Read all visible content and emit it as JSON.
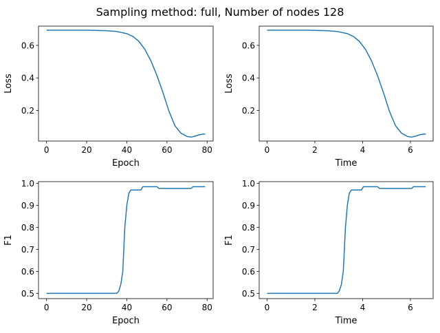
{
  "figure": {
    "title": "Sampling method: full, Number of nodes 128"
  },
  "chart_data": [
    {
      "type": "line",
      "xlabel": "Epoch",
      "ylabel": "Loss",
      "xlim": [
        -4,
        83
      ],
      "ylim": [
        0.012,
        0.718
      ],
      "xticks": [
        0,
        20,
        40,
        60,
        80
      ],
      "xtick_labels": [
        "0",
        "20",
        "40",
        "60",
        "80"
      ],
      "yticks": [
        0.2,
        0.4,
        0.6
      ],
      "ytick_labels": [
        "0.2",
        "0.4",
        "0.6"
      ],
      "color": "#1f77b4",
      "grid": false,
      "series": [
        {
          "x": [
            0,
            10,
            20,
            30,
            35,
            40,
            43,
            46,
            49,
            52,
            55,
            58,
            61,
            64,
            67,
            70,
            72,
            74,
            76,
            78,
            79
          ],
          "y": [
            0.693,
            0.693,
            0.693,
            0.69,
            0.685,
            0.672,
            0.655,
            0.625,
            0.575,
            0.505,
            0.415,
            0.31,
            0.195,
            0.105,
            0.06,
            0.04,
            0.036,
            0.042,
            0.05,
            0.055,
            0.055
          ]
        }
      ]
    },
    {
      "type": "line",
      "xlabel": "Time",
      "ylabel": "Loss",
      "xlim": [
        -0.33,
        6.95
      ],
      "ylim": [
        0.012,
        0.718
      ],
      "xticks": [
        0,
        2,
        4,
        6
      ],
      "xtick_labels": [
        "0",
        "2",
        "4",
        "6"
      ],
      "yticks": [
        0.2,
        0.4,
        0.6
      ],
      "ytick_labels": [
        "0.2",
        "0.4",
        "0.6"
      ],
      "color": "#1f77b4",
      "grid": false,
      "series": [
        {
          "x": [
            0,
            0.84,
            1.68,
            2.52,
            2.94,
            3.36,
            3.61,
            3.86,
            4.12,
            4.37,
            4.62,
            4.87,
            5.12,
            5.38,
            5.63,
            5.88,
            6.05,
            6.22,
            6.38,
            6.55,
            6.64
          ],
          "y": [
            0.693,
            0.693,
            0.693,
            0.69,
            0.685,
            0.672,
            0.655,
            0.625,
            0.575,
            0.505,
            0.415,
            0.31,
            0.195,
            0.105,
            0.06,
            0.04,
            0.036,
            0.042,
            0.05,
            0.055,
            0.055
          ]
        }
      ]
    },
    {
      "type": "line",
      "xlabel": "Epoch",
      "ylabel": "F1",
      "xlim": [
        -4,
        83
      ],
      "ylim": [
        0.476,
        1.008
      ],
      "xticks": [
        0,
        20,
        40,
        60,
        80
      ],
      "xtick_labels": [
        "0",
        "20",
        "40",
        "60",
        "80"
      ],
      "yticks": [
        0.5,
        0.6,
        0.7,
        0.8,
        0.9,
        1.0
      ],
      "ytick_labels": [
        "0.5",
        "0.6",
        "0.7",
        "0.8",
        "0.9",
        "1.0"
      ],
      "color": "#1f77b4",
      "grid": false,
      "series": [
        {
          "x": [
            0,
            35,
            36,
            37,
            38,
            39,
            40,
            41,
            42,
            43,
            44,
            47,
            48,
            55,
            56,
            72,
            73,
            79
          ],
          "y": [
            0.5,
            0.5,
            0.51,
            0.54,
            0.6,
            0.8,
            0.9,
            0.955,
            0.97,
            0.97,
            0.97,
            0.97,
            0.985,
            0.985,
            0.977,
            0.977,
            0.985,
            0.985
          ]
        }
      ]
    },
    {
      "type": "line",
      "xlabel": "Time",
      "ylabel": "F1",
      "xlim": [
        -0.33,
        6.95
      ],
      "ylim": [
        0.476,
        1.008
      ],
      "xticks": [
        0,
        2,
        4,
        6
      ],
      "xtick_labels": [
        "0",
        "2",
        "4",
        "6"
      ],
      "yticks": [
        0.5,
        0.6,
        0.7,
        0.8,
        0.9,
        1.0
      ],
      "ytick_labels": [
        "0.5",
        "0.6",
        "0.7",
        "0.8",
        "0.9",
        "1.0"
      ],
      "color": "#1f77b4",
      "grid": false,
      "series": [
        {
          "x": [
            0,
            2.94,
            3.02,
            3.11,
            3.19,
            3.28,
            3.36,
            3.44,
            3.53,
            3.61,
            3.7,
            3.95,
            4.03,
            4.62,
            4.71,
            6.05,
            6.13,
            6.64
          ],
          "y": [
            0.5,
            0.5,
            0.51,
            0.54,
            0.6,
            0.8,
            0.9,
            0.955,
            0.97,
            0.97,
            0.97,
            0.97,
            0.985,
            0.985,
            0.977,
            0.977,
            0.985,
            0.985
          ]
        }
      ]
    }
  ]
}
